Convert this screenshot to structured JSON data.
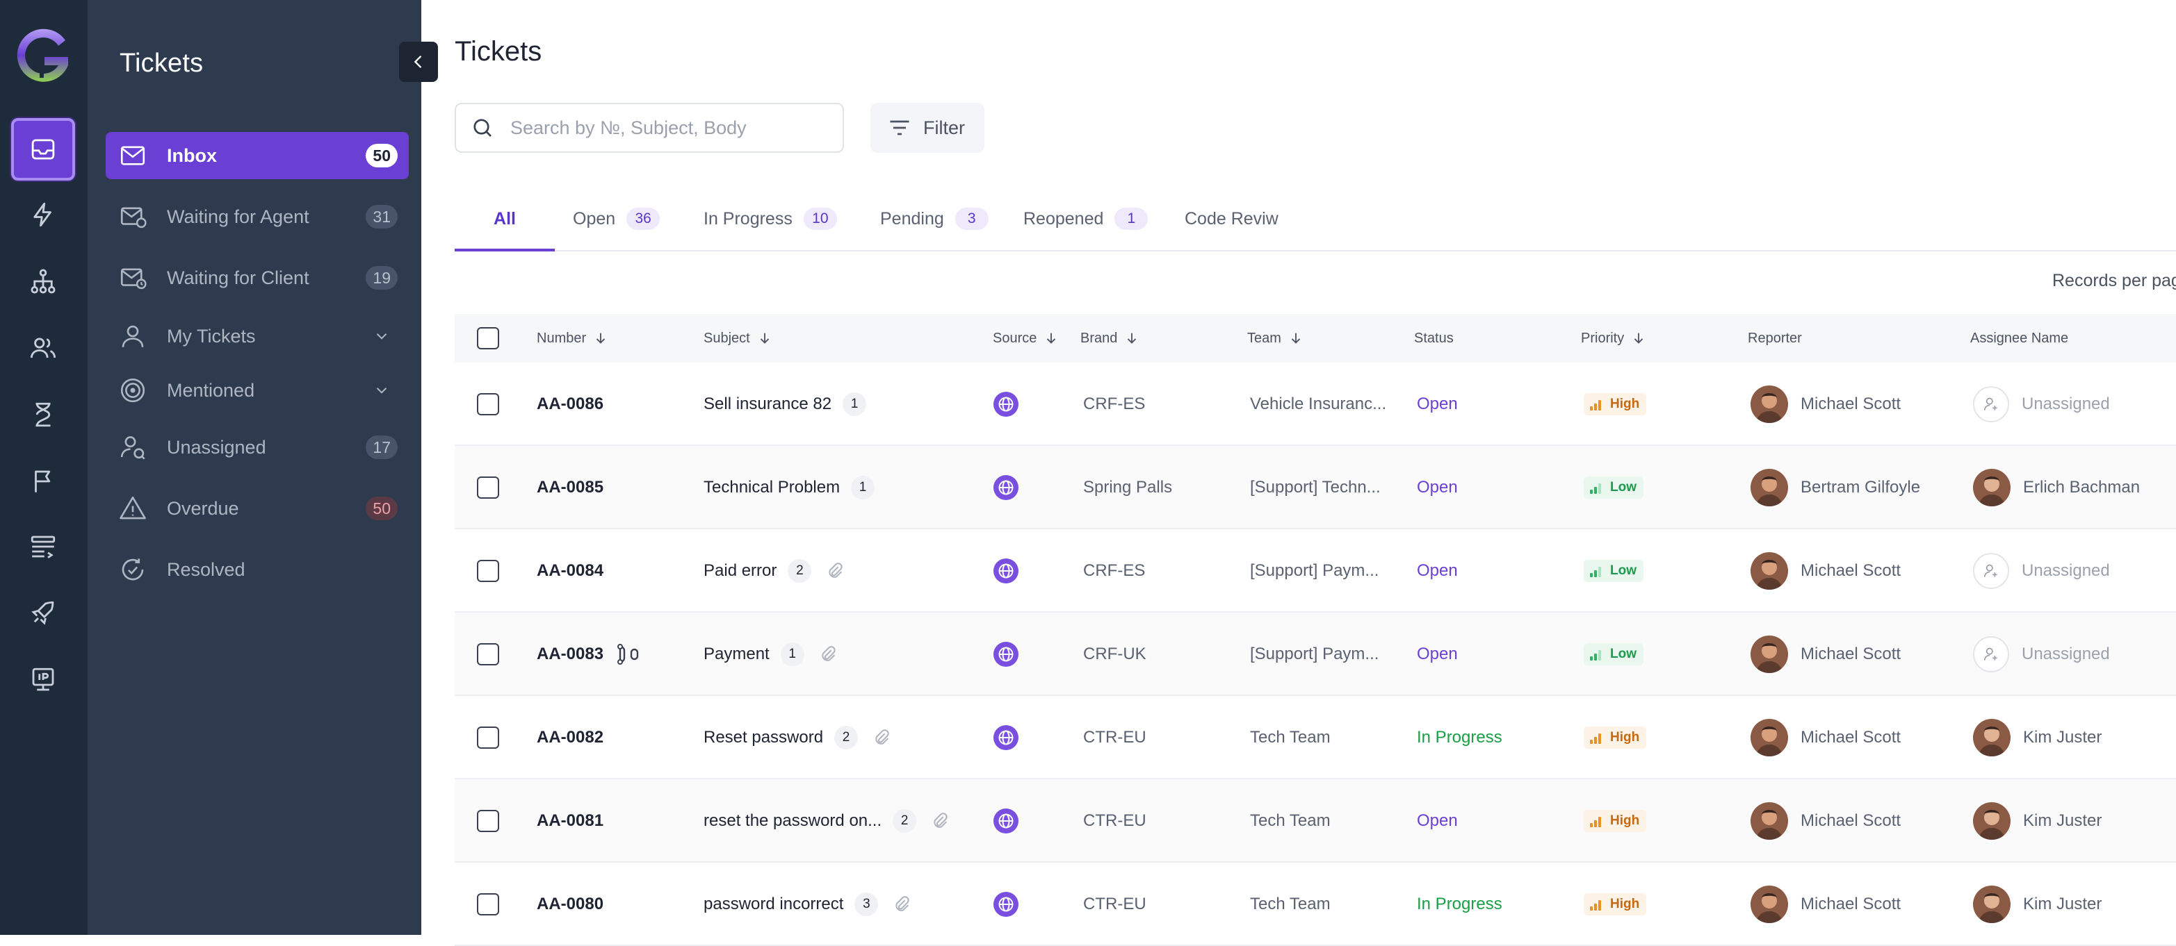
{
  "sidebar": {
    "title": "Tickets",
    "items": [
      {
        "label": "Inbox",
        "count": "50"
      },
      {
        "label": "Waiting for Agent",
        "count": "31"
      },
      {
        "label": "Waiting for Client",
        "count": "19"
      },
      {
        "label": "My Tickets",
        "count": null
      },
      {
        "label": "Mentioned",
        "count": null
      },
      {
        "label": "Unassigned",
        "count": "17"
      },
      {
        "label": "Overdue",
        "count": "50"
      },
      {
        "label": "Resolved",
        "count": null
      }
    ]
  },
  "main": {
    "title": "Tickets",
    "search": {
      "placeholder": "Search by №, Subject, Body"
    },
    "filter_label": "Filter",
    "tabs": [
      {
        "label": "All",
        "count": null
      },
      {
        "label": "Open",
        "count": "36"
      },
      {
        "label": "In Progress",
        "count": "10"
      },
      {
        "label": "Pending",
        "count": "3"
      },
      {
        "label": "Reopened",
        "count": "1"
      },
      {
        "label": "Code Reviw",
        "count": null
      }
    ],
    "records_label": "Records per page",
    "columns": [
      "Number",
      "Subject",
      "Source",
      "Brand",
      "Team",
      "Status",
      "Priority",
      "Reporter",
      "Assignee Name"
    ],
    "rows": [
      {
        "number": "AA-0086",
        "subject": "Sell insurance 82",
        "msgs": "1",
        "attach": false,
        "linked": false,
        "brand": "CRF-ES",
        "team": "Vehicle Insuranc...",
        "status": "Open",
        "priority": "High",
        "reporter": "Michael Scott",
        "assignee": "Unassigned"
      },
      {
        "number": "AA-0085",
        "subject": "Technical Problem",
        "msgs": "1",
        "attach": false,
        "linked": false,
        "brand": "Spring Palls",
        "team": "[Support] Techn...",
        "status": "Open",
        "priority": "Low",
        "reporter": "Bertram Gilfoyle",
        "assignee": "Erlich Bachman"
      },
      {
        "number": "AA-0084",
        "subject": "Paid error",
        "msgs": "2",
        "attach": true,
        "linked": false,
        "brand": "CRF-ES",
        "team": "[Support] Paym...",
        "status": "Open",
        "priority": "Low",
        "reporter": "Michael Scott",
        "assignee": "Unassigned"
      },
      {
        "number": "AA-0083",
        "subject": "Payment",
        "msgs": "1",
        "attach": true,
        "linked": true,
        "brand": "CRF-UK",
        "team": "[Support] Paym...",
        "status": "Open",
        "priority": "Low",
        "reporter": "Michael Scott",
        "assignee": "Unassigned"
      },
      {
        "number": "AA-0082",
        "subject": "Reset password",
        "msgs": "2",
        "attach": true,
        "linked": false,
        "brand": "CTR-EU",
        "team": "Tech Team",
        "status": "In Progress",
        "priority": "High",
        "reporter": "Michael Scott",
        "assignee": "Kim Juster"
      },
      {
        "number": "AA-0081",
        "subject": "reset the password on...",
        "msgs": "2",
        "attach": true,
        "linked": false,
        "brand": "CTR-EU",
        "team": "Tech Team",
        "status": "Open",
        "priority": "High",
        "reporter": "Michael Scott",
        "assignee": "Kim Juster"
      },
      {
        "number": "AA-0080",
        "subject": "password incorrect",
        "msgs": "3",
        "attach": true,
        "linked": false,
        "brand": "CTR-EU",
        "team": "Tech Team",
        "status": "In Progress",
        "priority": "High",
        "reporter": "Michael Scott",
        "assignee": "Kim Juster"
      }
    ]
  },
  "colors": {
    "accent": "#6a3fd4",
    "rail_bg": "#1e2b3a",
    "sidebar_bg": "#2e3b4e",
    "status_open": "#6a3fd4",
    "status_in_progress": "#18a046",
    "priority_high": "#c56a10",
    "priority_low": "#1e9a4e"
  }
}
